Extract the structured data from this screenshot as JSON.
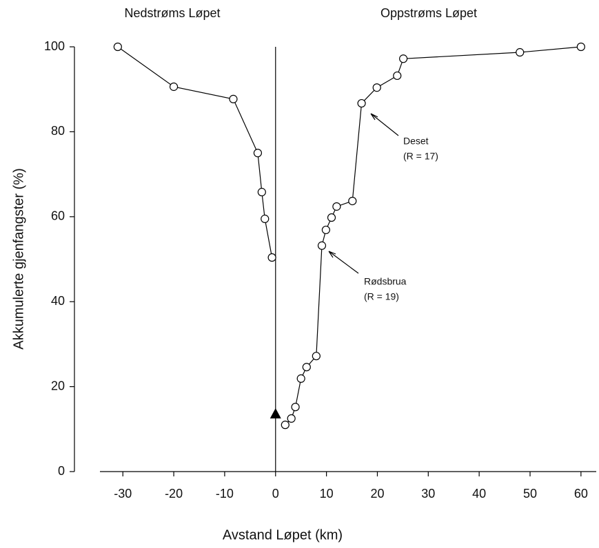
{
  "chart_data": {
    "type": "line",
    "left_header": "Nedstrøms Løpet",
    "right_header": "Oppstrøms Løpet",
    "x_label": "Avstand Løpet (km)",
    "y_label": "Akkumulerte gjenfangster (%)",
    "series": [
      {
        "name": "Nedstrøms",
        "color": "#000000",
        "x": [
          -31,
          -20,
          -8.3,
          -3.5,
          -2.7,
          -2.1,
          -0.7
        ],
        "values": [
          100,
          90.6,
          87.7,
          75,
          65.8,
          59.5,
          50.4
        ]
      },
      {
        "name": "Oppstrøms",
        "color": "#000000",
        "x": [
          1.9,
          3.1,
          3.9,
          5.0,
          6.1,
          8.0,
          9.1,
          9.9,
          11.0,
          12.0,
          15.1,
          16.9,
          19.9,
          23.9,
          25.1,
          48,
          60
        ],
        "values": [
          11,
          12.5,
          15.2,
          21.9,
          24.6,
          27.2,
          53.2,
          56.9,
          59.8,
          62.4,
          63.7,
          86.7,
          90.4,
          93.2,
          97.2,
          98.7,
          100
        ]
      }
    ],
    "release_point": {
      "x": 0,
      "value": 13.6
    },
    "annotations": [
      {
        "name": "Deset",
        "text": "(R = 17)"
      },
      {
        "name": "Rødsbrua",
        "text": "(R = 19)"
      }
    ],
    "xlim": [
      -34.5,
      63
    ],
    "ylim": [
      0,
      100
    ],
    "xticks": [
      -30,
      -20,
      -10,
      0,
      10,
      20,
      30,
      40,
      50,
      60
    ],
    "yticks": [
      0,
      20,
      40,
      60,
      80,
      100
    ]
  }
}
